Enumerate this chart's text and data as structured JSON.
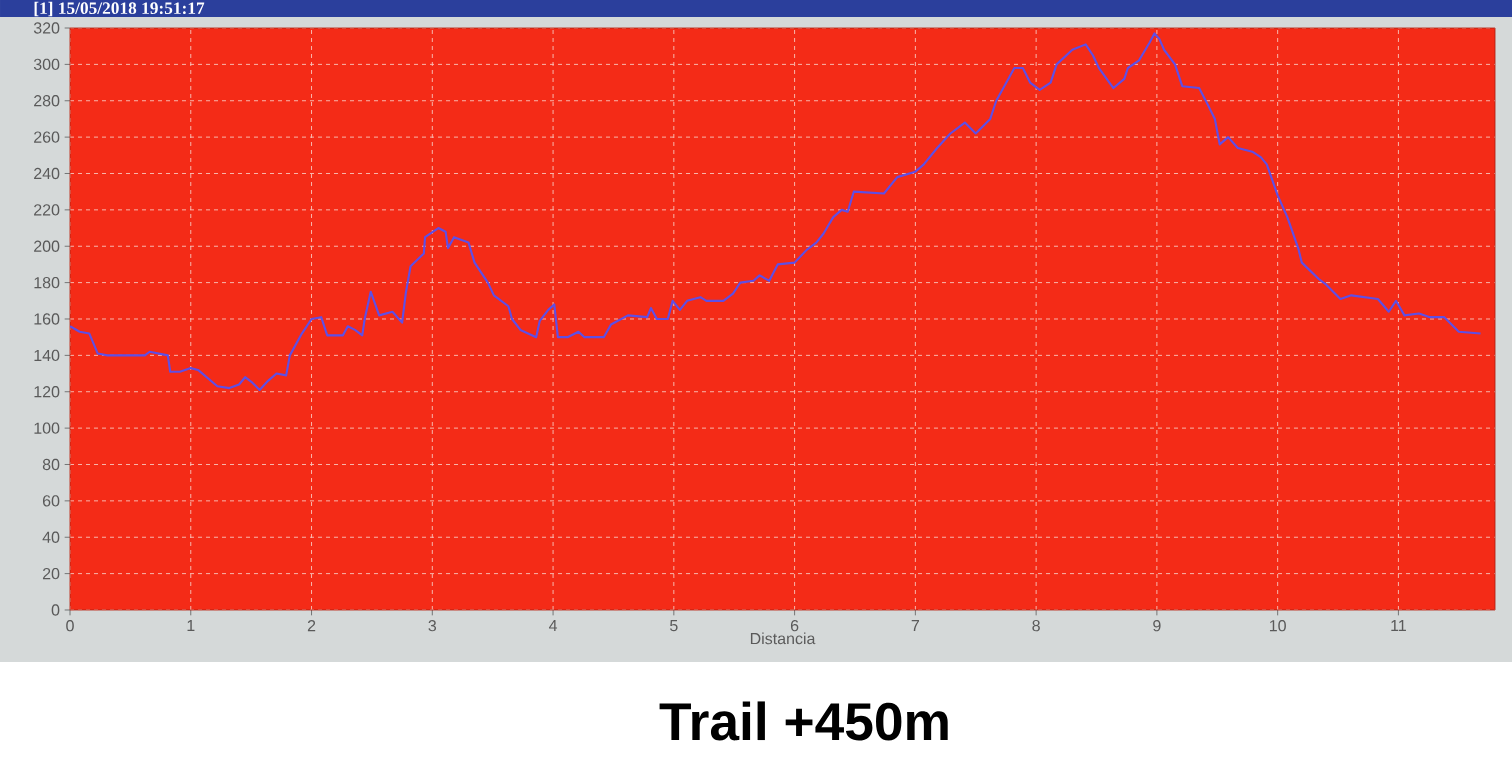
{
  "chart_data": {
    "type": "line",
    "title": "Trail +450m",
    "subtitle": "[1] 15/05/2018 19:51:17",
    "xlabel": "Distancia",
    "color": "#5e4fe6",
    "x": [
      0,
      0.08,
      0.16,
      0.23,
      0.31,
      0.62,
      0.66,
      0.81,
      0.83,
      0.91,
      1.0,
      1.06,
      1.22,
      1.32,
      1.4,
      1.45,
      1.51,
      1.57,
      1.64,
      1.71,
      1.79,
      1.82,
      1.92,
      2.0,
      2.08,
      2.13,
      2.26,
      2.3,
      2.36,
      2.42,
      2.44,
      2.49,
      2.56,
      2.67,
      2.75,
      2.78,
      2.82,
      2.93,
      2.94,
      3.05,
      3.11,
      3.13,
      3.18,
      3.3,
      3.35,
      3.46,
      3.51,
      3.63,
      3.66,
      3.73,
      3.86,
      3.89,
      3.96,
      4.01,
      4.04,
      4.12,
      4.21,
      4.26,
      4.42,
      4.48,
      4.62,
      4.78,
      4.81,
      4.86,
      4.95,
      4.99,
      5.05,
      5.11,
      5.22,
      5.27,
      5.41,
      5.49,
      5.55,
      5.66,
      5.71,
      5.79,
      5.86,
      6.0,
      6.1,
      6.18,
      6.24,
      6.32,
      6.39,
      6.44,
      6.49,
      6.74,
      6.85,
      7.0,
      7.07,
      7.18,
      7.29,
      7.41,
      7.5,
      7.62,
      7.67,
      7.82,
      7.89,
      7.95,
      8.03,
      8.12,
      8.17,
      8.3,
      8.41,
      8.47,
      8.52,
      8.64,
      8.73,
      8.76,
      8.85,
      8.94,
      8.98,
      9.02,
      9.06,
      9.15,
      9.21,
      9.35,
      9.42,
      9.48,
      9.52,
      9.59,
      9.67,
      9.79,
      9.86,
      9.91,
      10.0,
      10.08,
      10.17,
      10.2,
      10.34,
      10.4,
      10.52,
      10.61,
      10.83,
      10.92,
      10.98,
      11.05,
      11.17,
      11.26,
      11.38,
      11.5,
      11.68
    ],
    "values": [
      156,
      153,
      152,
      141,
      140,
      140,
      142,
      140,
      131,
      131,
      133,
      132,
      123,
      122,
      124,
      128,
      125,
      121,
      126,
      130,
      129,
      140,
      152,
      160,
      161,
      151,
      151,
      156,
      154,
      151,
      160,
      175,
      162,
      164,
      158,
      174,
      189,
      196,
      205,
      210,
      208,
      199,
      205,
      202,
      191,
      180,
      173,
      167,
      160,
      154,
      150,
      159,
      165,
      168,
      150,
      150,
      153,
      150,
      150,
      157,
      162,
      161,
      166,
      160,
      160,
      170,
      165,
      170,
      172,
      170,
      170,
      174,
      180,
      181,
      184,
      181,
      190,
      191,
      198,
      202,
      207,
      216,
      220,
      219,
      230,
      229,
      238,
      241,
      245,
      254,
      262,
      268,
      262,
      270,
      280,
      298,
      298,
      290,
      286,
      290,
      300,
      308,
      311,
      305,
      298,
      287,
      292,
      298,
      302,
      312,
      317,
      314,
      308,
      300,
      288,
      287,
      278,
      270,
      256,
      260,
      254,
      252,
      249,
      245,
      228,
      216,
      199,
      191,
      182,
      179,
      171,
      173,
      171,
      164,
      170,
      162,
      163,
      161,
      161,
      153,
      152
    ],
    "xlim": [
      0,
      11.8
    ],
    "ylim": [
      0,
      320
    ],
    "xticks": [
      0,
      1,
      2,
      3,
      4,
      5,
      6,
      7,
      8,
      9,
      10,
      11
    ],
    "yticks": [
      0,
      20,
      40,
      60,
      80,
      100,
      120,
      140,
      160,
      180,
      200,
      220,
      240,
      260,
      280,
      300,
      320
    ],
    "grid": true
  }
}
